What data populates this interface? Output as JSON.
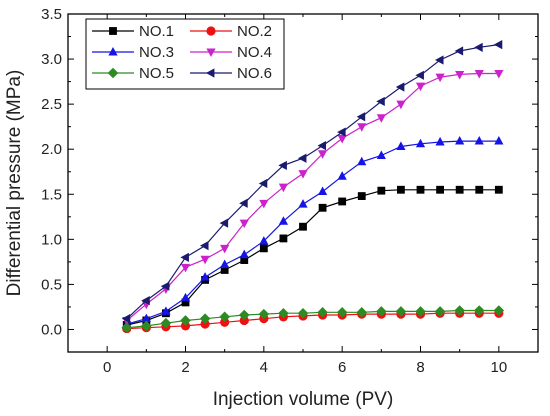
{
  "chart_data": {
    "type": "line",
    "xlabel": "Injection volume (PV)",
    "ylabel": "Differential pressure (MPa)",
    "xlim": [
      -1,
      11
    ],
    "ylim": [
      -0.25,
      3.5
    ],
    "xticks": [
      0,
      2,
      4,
      6,
      8,
      10
    ],
    "yticks": [
      0.0,
      0.5,
      1.0,
      1.5,
      2.0,
      2.5,
      3.0,
      3.5
    ],
    "xtick_labels": [
      "0",
      "2",
      "4",
      "6",
      "8",
      "10"
    ],
    "ytick_labels": [
      "0.0",
      "0.5",
      "1.0",
      "1.5",
      "2.0",
      "2.5",
      "3.0",
      "3.5"
    ],
    "grid": false,
    "legend_position": "top-left",
    "x": [
      0.5,
      1.0,
      1.5,
      2.0,
      2.5,
      3.0,
      3.5,
      4.0,
      4.5,
      5.0,
      5.5,
      6.0,
      6.5,
      7.0,
      7.5,
      8.0,
      8.5,
      9.0,
      9.5,
      10.0
    ],
    "series": [
      {
        "name": "NO.1",
        "color": "#000000",
        "marker": "square",
        "values": [
          0.05,
          0.1,
          0.18,
          0.3,
          0.55,
          0.66,
          0.77,
          0.9,
          1.01,
          1.14,
          1.35,
          1.42,
          1.48,
          1.54,
          1.55,
          1.55,
          1.55,
          1.55,
          1.55,
          1.55
        ]
      },
      {
        "name": "NO.2",
        "color": "#ee1111",
        "marker": "circle",
        "values": [
          0.01,
          0.02,
          0.03,
          0.04,
          0.06,
          0.08,
          0.1,
          0.12,
          0.14,
          0.15,
          0.16,
          0.16,
          0.17,
          0.17,
          0.17,
          0.17,
          0.18,
          0.18,
          0.18,
          0.18
        ]
      },
      {
        "name": "NO.3",
        "color": "#1414e6",
        "marker": "triangle-up",
        "values": [
          0.06,
          0.12,
          0.2,
          0.35,
          0.58,
          0.72,
          0.83,
          0.98,
          1.2,
          1.39,
          1.53,
          1.7,
          1.86,
          1.93,
          2.03,
          2.06,
          2.08,
          2.09,
          2.09,
          2.09
        ]
      },
      {
        "name": "NO.4",
        "color": "#cc22cc",
        "marker": "triangle-down",
        "values": [
          0.1,
          0.28,
          0.45,
          0.69,
          0.78,
          0.9,
          1.18,
          1.4,
          1.58,
          1.73,
          1.95,
          2.12,
          2.25,
          2.35,
          2.5,
          2.7,
          2.8,
          2.83,
          2.84,
          2.84
        ]
      },
      {
        "name": "NO.5",
        "color": "#2e8b23",
        "marker": "diamond",
        "values": [
          0.02,
          0.04,
          0.07,
          0.1,
          0.12,
          0.14,
          0.16,
          0.17,
          0.18,
          0.18,
          0.19,
          0.19,
          0.19,
          0.2,
          0.2,
          0.2,
          0.2,
          0.21,
          0.21,
          0.21
        ]
      },
      {
        "name": "NO.6",
        "color": "#1a1a6e",
        "marker": "triangle-left",
        "values": [
          0.12,
          0.32,
          0.48,
          0.8,
          0.93,
          1.18,
          1.4,
          1.62,
          1.82,
          1.9,
          2.04,
          2.19,
          2.36,
          2.53,
          2.69,
          2.82,
          2.99,
          3.09,
          3.13,
          3.16
        ]
      }
    ]
  }
}
